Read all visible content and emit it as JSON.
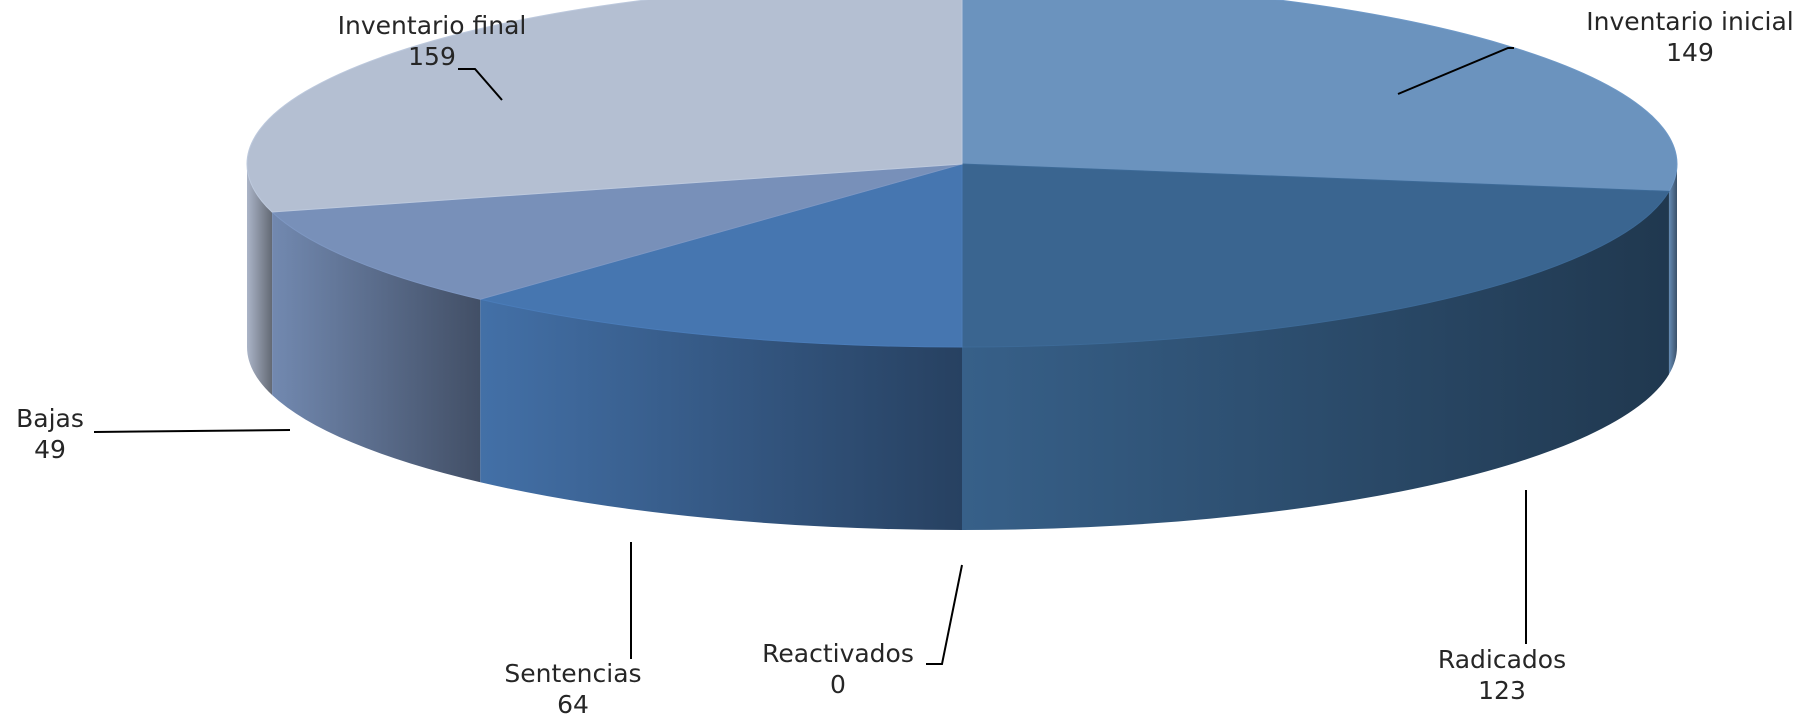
{
  "chart_data": {
    "type": "pie",
    "style": "3d",
    "categories": [
      "Inventario inicial",
      "Radicados",
      "Reactivados",
      "Sentencias",
      "Bajas",
      "Inventario final"
    ],
    "values": [
      149,
      123,
      0,
      64,
      49,
      159
    ],
    "colors": [
      "#6b93be",
      "#3a6590",
      "#2f5a88",
      "#4676b0",
      "#7890b9",
      "#b4bfd2"
    ],
    "legend": "none",
    "data_labels": "category-and-value"
  }
}
